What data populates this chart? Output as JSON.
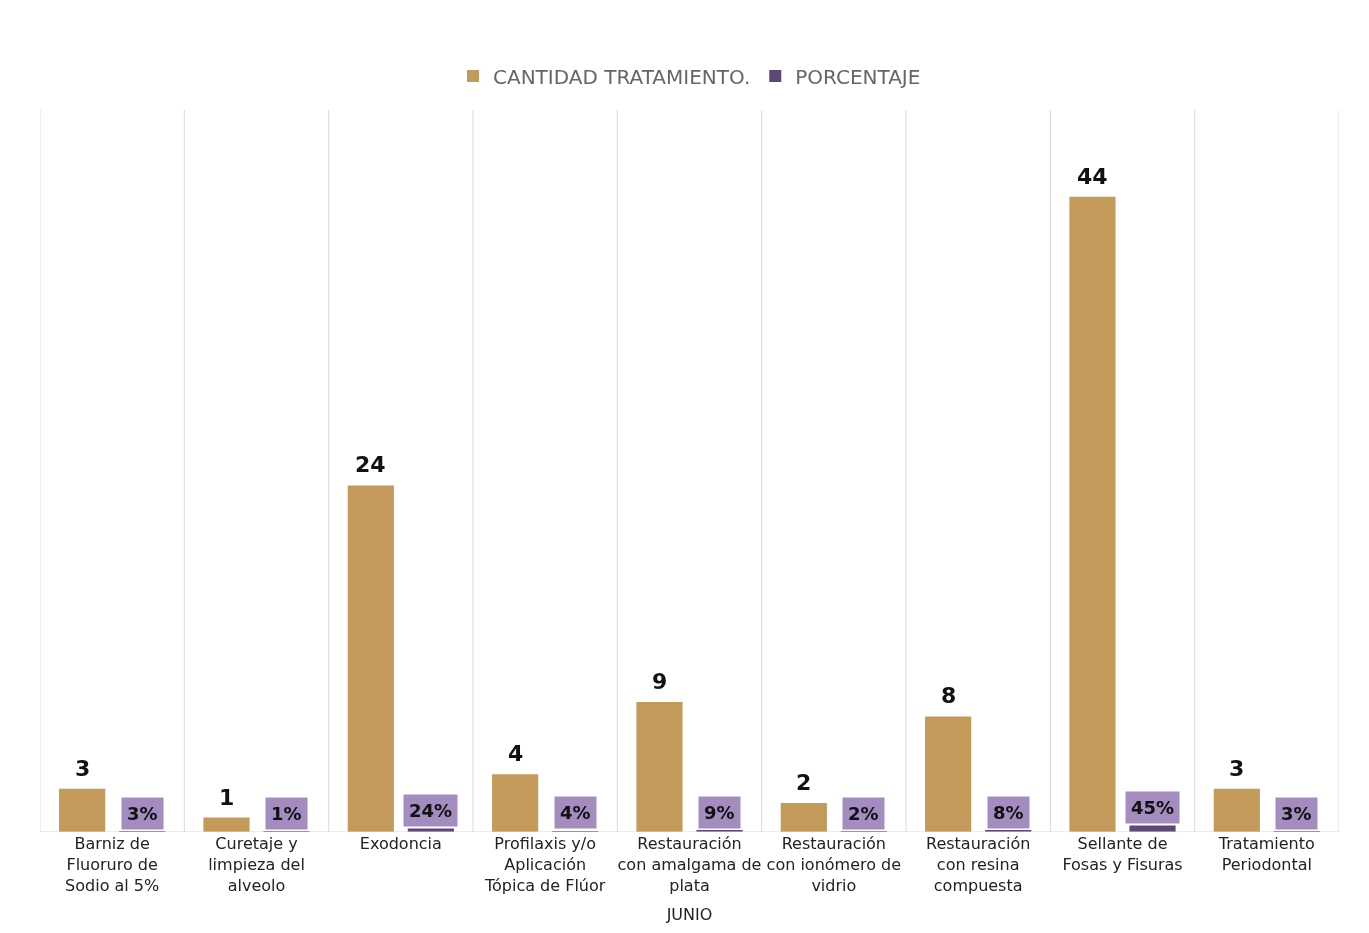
{
  "chart_data": {
    "type": "bar",
    "categories": [
      "Barniz de Fluoruro de Sodio al 5%",
      "Curetaje y limpieza del alveolo",
      "Exodoncia",
      "Profilaxis y/o Aplicación Tópica de Flúor",
      "Restauración con amalgama de plata",
      "Restauración con ionómero de vidrio",
      "Restauración con resina compuesta",
      "Sellante de Fosas y Fisuras",
      "Tratamiento Periodontal"
    ],
    "xlabel": "JUNIO",
    "series": [
      {
        "name": "CANTIDAD TRATAMIENTO.",
        "color": "#c49a5a",
        "values": [
          3,
          1,
          24,
          4,
          9,
          2,
          8,
          44,
          3
        ],
        "value_labels": [
          "3",
          "1",
          "24",
          "4",
          "9",
          "2",
          "8",
          "44",
          "3"
        ]
      },
      {
        "name": "PORCENTAJE",
        "color": "#5e4878",
        "values": [
          0.03,
          0.01,
          0.24,
          0.04,
          0.09,
          0.02,
          0.08,
          0.45,
          0.03
        ],
        "value_labels": [
          "3%",
          "1%",
          "24%",
          "4%",
          "9%",
          "2%",
          "8%",
          "45%",
          "3%"
        ]
      }
    ],
    "ylim": [
      0,
      50
    ],
    "tick_labels": "x",
    "grid": "x",
    "legend": "top"
  }
}
